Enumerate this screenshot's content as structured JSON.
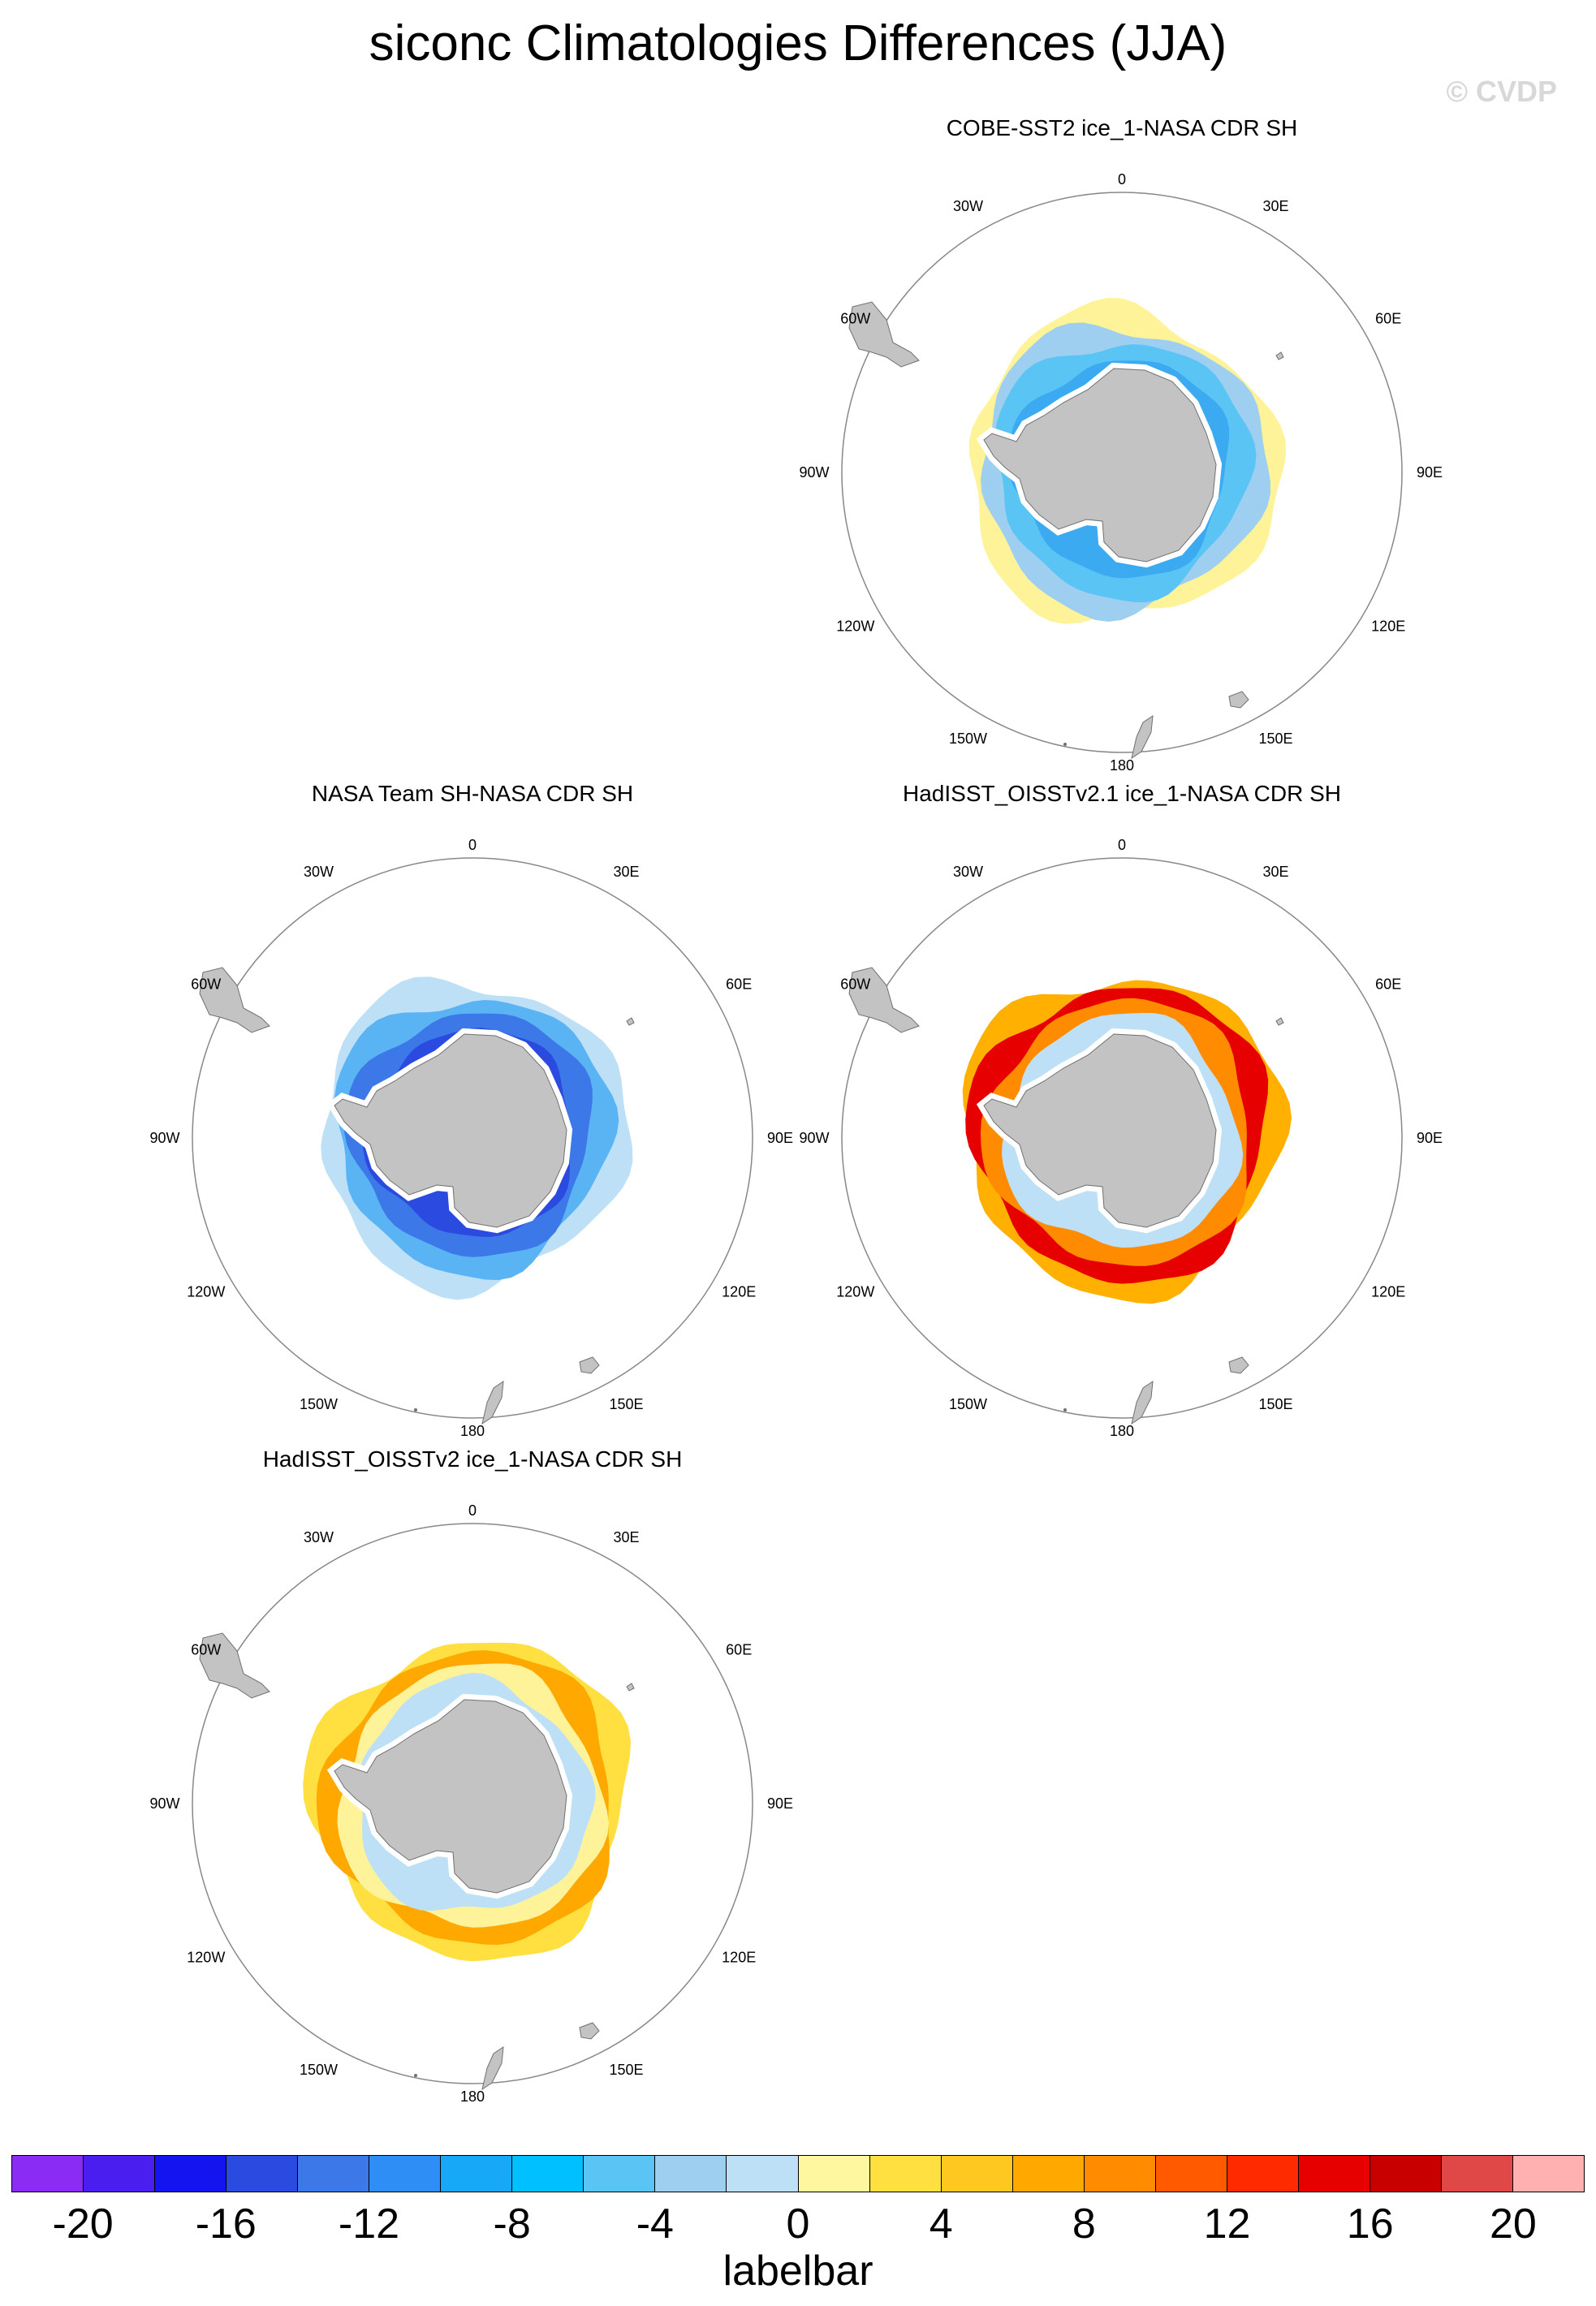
{
  "figure": {
    "title": "siconc Climatologies Differences (JJA)",
    "credit": "© CVDP"
  },
  "panels": [
    {
      "id": "cobe",
      "title": "COBE-SST2 ice_1-NASA CDR SH",
      "style": "cobe"
    },
    {
      "id": "team",
      "title": "NASA Team SH-NASA CDR SH",
      "style": "team"
    },
    {
      "id": "had21",
      "title": "HadISST_OISSTv2.1 ice_1-NASA CDR SH",
      "style": "had21"
    },
    {
      "id": "had2",
      "title": "HadISST_OISSTv2 ice_1-NASA CDR SH",
      "style": "had2"
    }
  ],
  "map": {
    "projection": "south polar stereographic",
    "longitude_labels": [
      "0",
      "30E",
      "60E",
      "90E",
      "120E",
      "150E",
      "180",
      "150W",
      "120W",
      "90W",
      "60W",
      "30W"
    ],
    "land_color": "#c3c3c3",
    "ocean_color": "#ffffff"
  },
  "colorbar": {
    "label": "labelbar",
    "tick_labels": [
      "-20",
      "-16",
      "-12",
      "-8",
      "-4",
      "0",
      "4",
      "8",
      "12",
      "16",
      "20"
    ],
    "levels": [
      -20,
      -18,
      -16,
      -14,
      -12,
      -10,
      -8,
      -6,
      -4,
      -2,
      0,
      2,
      4,
      6,
      8,
      10,
      12,
      14,
      16,
      18,
      20
    ],
    "colors": [
      "#8b2cf4",
      "#4b1ef0",
      "#1414f0",
      "#2a4ae0",
      "#3c78e8",
      "#2e8ef5",
      "#18a8f8",
      "#00c0ff",
      "#5ac4f4",
      "#9ecff0",
      "#bde0f6",
      "#fff6a0",
      "#ffe040",
      "#ffc820",
      "#ffa800",
      "#ff8c00",
      "#ff5a00",
      "#ff2a00",
      "#e60000",
      "#c80000",
      "#e04848",
      "#ffb0b0"
    ]
  }
}
